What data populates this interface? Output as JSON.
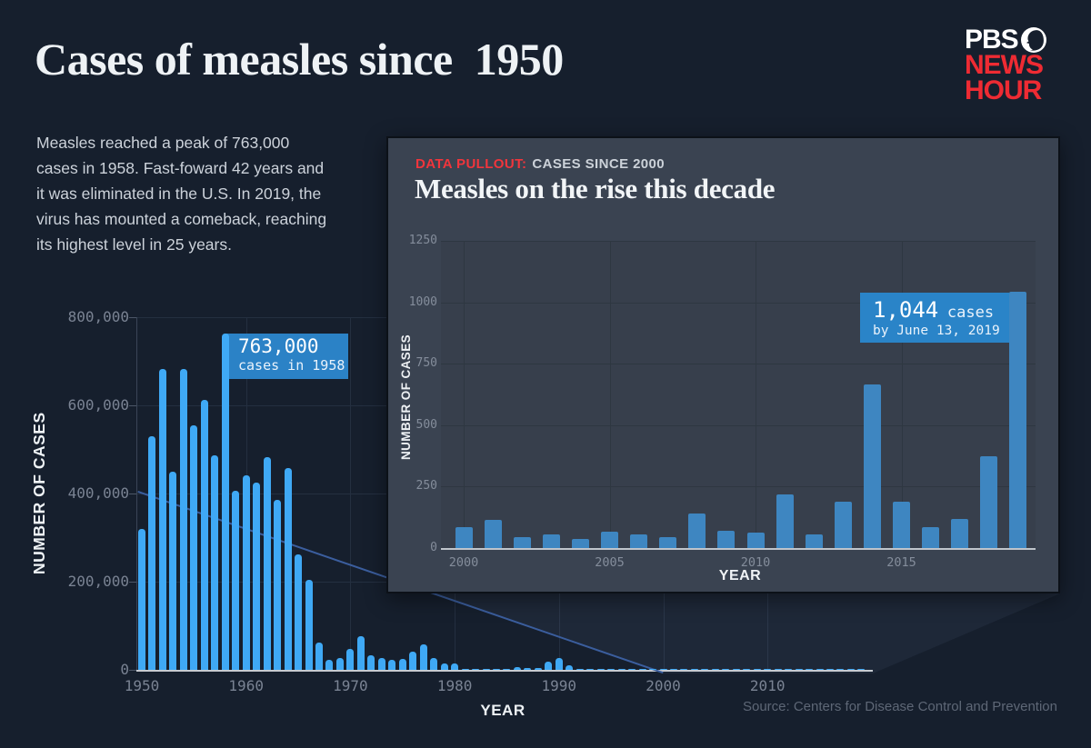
{
  "header": {
    "title": "Cases of measles since  1950",
    "intro": "Measles reached a peak of 763,000\ncases in 1958. Fast-foward 42 years and\nit was eliminated in the U.S. In 2019, the\nvirus has mounted a comeback, reaching\nits highest level in 25 years."
  },
  "logo": {
    "line1": "PBS",
    "line2": "NEWS",
    "line3": "HOUR",
    "red": "#ee2b33"
  },
  "footer": {
    "source": "Source: Centers for Disease Control and Prevention"
  },
  "colors": {
    "background": "#161f2d",
    "panel": "#3a4351",
    "main_bar": "#3fa9f5",
    "inset_bar": "#3e86c1",
    "callout": "#2b82c6",
    "kicker_red": "#f1353c",
    "logo_red": "#ee2b33"
  },
  "chart_data": [
    {
      "id": "main",
      "type": "bar",
      "title": "Cases of measles since 1950",
      "xlabel": "YEAR",
      "ylabel": "NUMBER OF CASES",
      "ylim": [
        0,
        800000
      ],
      "grid": "on",
      "ytick_values": [
        0,
        200000,
        400000,
        600000,
        800000
      ],
      "ytick_labels": [
        "0",
        "200,000",
        "400,000",
        "600,000",
        "800,000"
      ],
      "xtick_values": [
        1950,
        1960,
        1970,
        1980,
        1990,
        2000,
        2010
      ],
      "xtick_labels": [
        "1950",
        "1960",
        "1970",
        "1980",
        "1990",
        "2000",
        "2010"
      ],
      "annotation": {
        "value": "763,000",
        "label": "cases in 1958",
        "year": 1958
      },
      "x": [
        1950,
        1951,
        1952,
        1953,
        1954,
        1955,
        1956,
        1957,
        1958,
        1959,
        1960,
        1961,
        1962,
        1963,
        1964,
        1965,
        1966,
        1967,
        1968,
        1969,
        1970,
        1971,
        1972,
        1973,
        1974,
        1975,
        1976,
        1977,
        1978,
        1979,
        1980,
        1981,
        1982,
        1983,
        1984,
        1985,
        1986,
        1987,
        1988,
        1989,
        1990,
        1991,
        1992,
        1993,
        1994,
        1995,
        1996,
        1997,
        1998,
        1999,
        2000,
        2001,
        2002,
        2003,
        2004,
        2005,
        2006,
        2007,
        2008,
        2009,
        2010,
        2011,
        2012,
        2013,
        2014,
        2015,
        2016,
        2017,
        2018,
        2019
      ],
      "values": [
        319124,
        530118,
        683077,
        449146,
        682720,
        555156,
        611936,
        486799,
        763094,
        406162,
        441703,
        423919,
        481530,
        385156,
        458083,
        261904,
        204136,
        62705,
        22231,
        25826,
        47351,
        75290,
        32275,
        26690,
        22094,
        24374,
        41126,
        57345,
        26871,
        13597,
        13506,
        3124,
        1714,
        1497,
        2587,
        2822,
        6282,
        3655,
        3396,
        18193,
        27786,
        9643,
        2237,
        312,
        963,
        309,
        508,
        138,
        100,
        100,
        86,
        116,
        44,
        56,
        37,
        66,
        55,
        43,
        140,
        71,
        63,
        220,
        55,
        187,
        667,
        188,
        86,
        120,
        372,
        1044
      ]
    },
    {
      "id": "pullout",
      "type": "bar",
      "kicker": "DATA PULLOUT:",
      "kicker_rest": "CASES SINCE 2000",
      "title": "Measles on the rise this decade",
      "xlabel": "YEAR",
      "ylabel": "NUMBER OF CASES",
      "ylim": [
        0,
        1250
      ],
      "grid": "on",
      "ytick_values": [
        0,
        250,
        500,
        750,
        1000,
        1250
      ],
      "ytick_labels": [
        "0",
        "250",
        "500",
        "750",
        "1000",
        "1250"
      ],
      "xtick_values": [
        2000,
        2005,
        2010,
        2015
      ],
      "xtick_labels": [
        "2000",
        "2005",
        "2010",
        "2015"
      ],
      "annotation": {
        "value": "1,044",
        "label": "cases",
        "sub": "by June 13, 2019",
        "year": 2019
      },
      "x": [
        2000,
        2001,
        2002,
        2003,
        2004,
        2005,
        2006,
        2007,
        2008,
        2009,
        2010,
        2011,
        2012,
        2013,
        2014,
        2015,
        2016,
        2017,
        2018,
        2019
      ],
      "values": [
        86,
        116,
        44,
        56,
        37,
        66,
        55,
        43,
        140,
        71,
        63,
        220,
        55,
        187,
        667,
        188,
        86,
        120,
        372,
        1044
      ]
    }
  ]
}
